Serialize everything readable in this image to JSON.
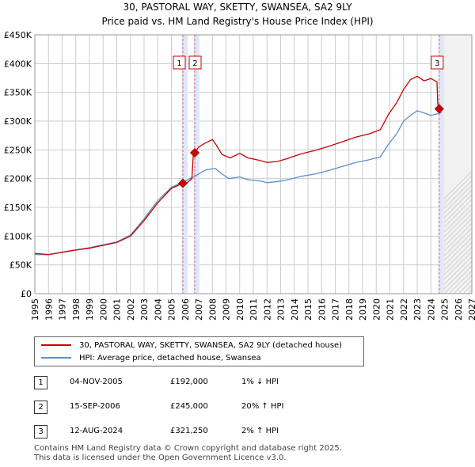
{
  "title_line1": "30, PASTORAL WAY, SKETTY, SWANSEA, SA2 9LY",
  "title_line2": "Price paid vs. HM Land Registry's House Price Index (HPI)",
  "chart_data": {
    "type": "line",
    "y_ticks": [
      "£0",
      "£50K",
      "£100K",
      "£150K",
      "£200K",
      "£250K",
      "£300K",
      "£350K",
      "£400K",
      "£450K"
    ],
    "y_tick_values": [
      0,
      50000,
      100000,
      150000,
      200000,
      250000,
      300000,
      350000,
      400000,
      450000
    ],
    "x_ticks": [
      "1995",
      "1996",
      "1997",
      "1998",
      "1999",
      "2000",
      "2001",
      "2002",
      "2003",
      "2004",
      "2005",
      "2006",
      "2007",
      "2008",
      "2009",
      "2010",
      "2011",
      "2012",
      "2013",
      "2014",
      "2015",
      "2016",
      "2017",
      "2018",
      "2019",
      "2020",
      "2021",
      "2022",
      "2023",
      "2024",
      "2025",
      "2026",
      "2027"
    ],
    "xlim": [
      1995,
      2027
    ],
    "ylim": [
      0,
      450000
    ],
    "colors": {
      "property": "#cc0000",
      "hpi": "#5b8fd0",
      "marker": "#cc0000",
      "vline": "#e06080",
      "shade": "#dfe8f7",
      "grid": "#cccccc"
    },
    "hpi_series": {
      "name": "HPI: Average price, detached house, Swansea",
      "points": [
        [
          1995.0,
          68000
        ],
        [
          1996.0,
          67500
        ],
        [
          1997.0,
          72000
        ],
        [
          1998.0,
          76000
        ],
        [
          1999.0,
          80000
        ],
        [
          2000.0,
          85000
        ],
        [
          2001.0,
          90000
        ],
        [
          2002.0,
          102000
        ],
        [
          2003.0,
          130000
        ],
        [
          2004.0,
          162000
        ],
        [
          2005.0,
          185000
        ],
        [
          2005.85,
          194000
        ],
        [
          2006.7,
          204000
        ],
        [
          2007.5,
          215000
        ],
        [
          2008.2,
          218000
        ],
        [
          2008.6,
          210000
        ],
        [
          2009.2,
          200000
        ],
        [
          2010.0,
          203000
        ],
        [
          2010.6,
          198000
        ],
        [
          2011.5,
          196000
        ],
        [
          2012.0,
          193000
        ],
        [
          2012.8,
          195000
        ],
        [
          2013.5,
          198000
        ],
        [
          2014.5,
          204000
        ],
        [
          2015.5,
          208000
        ],
        [
          2016.5,
          214000
        ],
        [
          2017.5,
          221000
        ],
        [
          2018.5,
          228000
        ],
        [
          2019.5,
          233000
        ],
        [
          2020.3,
          238000
        ],
        [
          2020.9,
          260000
        ],
        [
          2021.5,
          278000
        ],
        [
          2022.0,
          300000
        ],
        [
          2022.5,
          310000
        ],
        [
          2023.0,
          318000
        ],
        [
          2023.5,
          314000
        ],
        [
          2024.0,
          310000
        ],
        [
          2024.5,
          313000
        ],
        [
          2024.8,
          315000
        ]
      ]
    },
    "property_series": {
      "name": "30, PASTORAL WAY, SKETTY, SWANSEA, SA2 9LY (detached house)",
      "points": [
        [
          1995.0,
          70000
        ],
        [
          1996.0,
          68000
        ],
        [
          1997.0,
          72000
        ],
        [
          1998.0,
          76000
        ],
        [
          1999.0,
          79000
        ],
        [
          2000.0,
          84000
        ],
        [
          2001.0,
          89000
        ],
        [
          2002.0,
          100000
        ],
        [
          2003.0,
          127000
        ],
        [
          2004.0,
          158000
        ],
        [
          2005.0,
          183000
        ],
        [
          2005.84,
          192000
        ],
        [
          2006.0,
          190000
        ],
        [
          2006.5,
          200000
        ],
        [
          2006.6,
          240000
        ],
        [
          2006.71,
          245000
        ],
        [
          2007.0,
          255000
        ],
        [
          2007.5,
          262000
        ],
        [
          2008.0,
          268000
        ],
        [
          2008.3,
          258000
        ],
        [
          2008.7,
          242000
        ],
        [
          2009.3,
          236000
        ],
        [
          2010.0,
          244000
        ],
        [
          2010.6,
          236000
        ],
        [
          2011.4,
          232000
        ],
        [
          2012.0,
          228000
        ],
        [
          2012.8,
          230000
        ],
        [
          2013.5,
          235000
        ],
        [
          2014.5,
          243000
        ],
        [
          2015.5,
          249000
        ],
        [
          2016.5,
          256000
        ],
        [
          2017.5,
          264000
        ],
        [
          2018.5,
          272000
        ],
        [
          2019.5,
          278000
        ],
        [
          2020.3,
          285000
        ],
        [
          2020.9,
          312000
        ],
        [
          2021.5,
          332000
        ],
        [
          2022.0,
          355000
        ],
        [
          2022.5,
          372000
        ],
        [
          2023.0,
          378000
        ],
        [
          2023.5,
          370000
        ],
        [
          2024.0,
          374000
        ],
        [
          2024.45,
          368000
        ],
        [
          2024.5,
          330000
        ],
        [
          2024.61,
          321250
        ]
      ]
    },
    "sales": [
      {
        "label": "1",
        "year": 2005.84,
        "price": 192000
      },
      {
        "label": "2",
        "year": 2006.71,
        "price": 245000
      },
      {
        "label": "3",
        "year": 2024.61,
        "price": 321250
      }
    ]
  },
  "legend": {
    "property_label": "30, PASTORAL WAY, SKETTY, SWANSEA, SA2 9LY (detached house)",
    "hpi_label": "HPI: Average price, detached house, Swansea"
  },
  "transactions": [
    {
      "num": "1",
      "date": "04-NOV-2005",
      "price": "£192,000",
      "hpi": "1% ↓ HPI"
    },
    {
      "num": "2",
      "date": "15-SEP-2006",
      "price": "£245,000",
      "hpi": "20% ↑ HPI"
    },
    {
      "num": "3",
      "date": "12-AUG-2024",
      "price": "£321,250",
      "hpi": "2% ↑ HPI"
    }
  ],
  "footer": {
    "line1": "Contains HM Land Registry data © Crown copyright and database right 2025.",
    "line2": "This data is licensed under the Open Government Licence v3.0."
  }
}
